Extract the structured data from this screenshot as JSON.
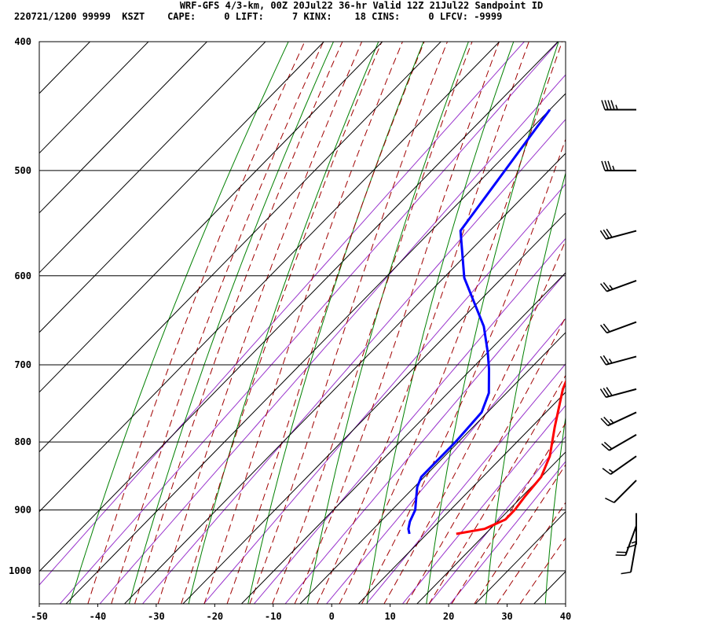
{
  "header": {
    "title": "WRF-GFS 4/3-km, 00Z 20Jul22 36-hr Valid 12Z 21Jul22 Sandpoint ID",
    "info_line": "220721/1200 99999  KSZT    CAPE:     0 LIFT:     7 KINX:    18 CINS:     0 LFCV: -9999"
  },
  "colors": {
    "temperature": "#ff0000",
    "dewpoint": "#0000ff",
    "isotherm": "#000000",
    "dry_adiabat": "#008000",
    "moist_adiabat": "#a00000",
    "mixing_ratio": "#9933cc"
  },
  "chart_data": {
    "type": "line",
    "title": "",
    "xlabel": "",
    "ylabel": "",
    "x_ticks": [
      -50,
      -40,
      -30,
      -20,
      -10,
      0,
      10,
      20,
      30,
      40
    ],
    "p_ticks": [
      400,
      500,
      600,
      700,
      800,
      900,
      1000
    ],
    "xlim": [
      -50,
      40
    ],
    "plim": [
      400,
      1040
    ],
    "log_pressure_axis": true,
    "grid": true,
    "series": [
      {
        "points": [
          [
            -16,
            450
          ],
          [
            -10,
            500
          ],
          [
            -4,
            560
          ],
          [
            0,
            600
          ],
          [
            2,
            630
          ],
          [
            5,
            680
          ],
          [
            9,
            730
          ],
          [
            14,
            780
          ],
          [
            18,
            820
          ],
          [
            20,
            850
          ],
          [
            20.5,
            880
          ],
          [
            21,
            900
          ],
          [
            21,
            915
          ],
          [
            19,
            930
          ],
          [
            15,
            938
          ]
        ]
      },
      {
        "points": [
          [
            -40,
            450
          ],
          [
            -35,
            555
          ],
          [
            -26.5,
            602
          ],
          [
            -15,
            655
          ],
          [
            -10,
            685
          ],
          [
            -7,
            705
          ],
          [
            -3,
            735
          ],
          [
            -1,
            760
          ],
          [
            -0.5,
            800
          ],
          [
            -0.5,
            830
          ],
          [
            -0.5,
            850
          ],
          [
            0.5,
            865
          ],
          [
            2,
            880
          ],
          [
            4,
            900
          ],
          [
            5,
            918
          ],
          [
            6,
            930
          ],
          [
            7,
            938
          ]
        ]
      }
    ],
    "wind_barbs": [
      {
        "p": 450,
        "speed": 45,
        "dir": 270
      },
      {
        "p": 500,
        "speed": 35,
        "dir": 270
      },
      {
        "p": 555,
        "speed": 30,
        "dir": 255
      },
      {
        "p": 605,
        "speed": 25,
        "dir": 250
      },
      {
        "p": 650,
        "speed": 20,
        "dir": 250
      },
      {
        "p": 690,
        "speed": 25,
        "dir": 255
      },
      {
        "p": 730,
        "speed": 30,
        "dir": 255
      },
      {
        "p": 760,
        "speed": 25,
        "dir": 245
      },
      {
        "p": 790,
        "speed": 20,
        "dir": 240
      },
      {
        "p": 820,
        "speed": 15,
        "dir": 235
      },
      {
        "p": 855,
        "speed": 10,
        "dir": 225
      },
      {
        "p": 905,
        "speed": 15,
        "dir": 180
      },
      {
        "p": 925,
        "speed": 20,
        "dir": 200
      },
      {
        "p": 950,
        "speed": 10,
        "dir": 190
      }
    ]
  }
}
